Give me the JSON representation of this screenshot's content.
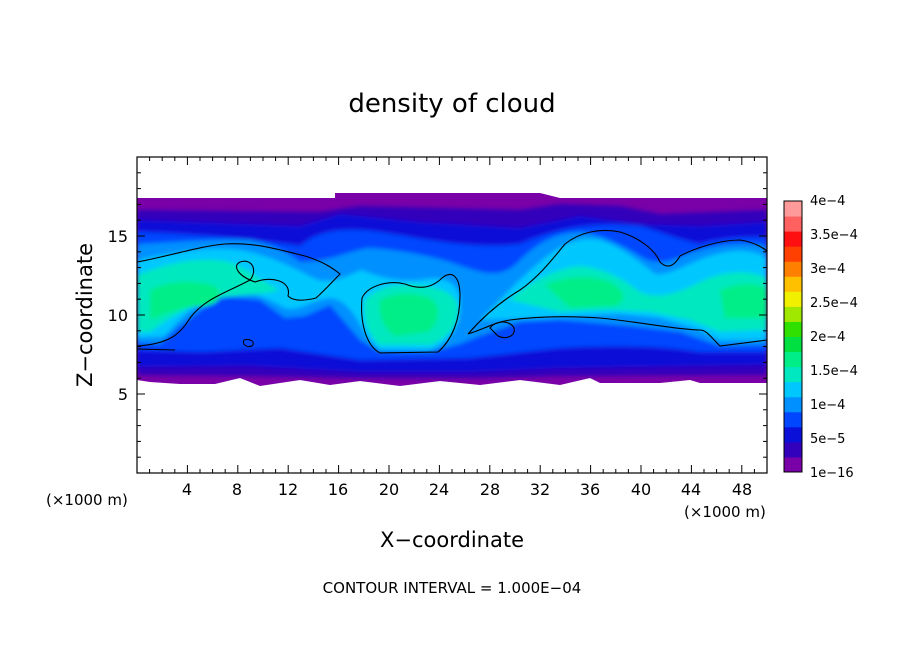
{
  "chart_data": {
    "type": "heatmap",
    "title": "density of cloud",
    "xlabel": "X−coordinate",
    "ylabel": "Z−coordinate",
    "x_unit_left": "(×1000 m)",
    "x_unit_right": "(×1000 m)",
    "footer": "CONTOUR INTERVAL = 1.000E−04",
    "xlim": [
      0,
      50
    ],
    "ylim": [
      0,
      20
    ],
    "x_ticks": [
      "4",
      "8",
      "12",
      "16",
      "20",
      "24",
      "28",
      "32",
      "36",
      "40",
      "44",
      "48"
    ],
    "y_ticks": [
      "5",
      "10",
      "15"
    ],
    "colorbar": {
      "levels": [
        "1e−16",
        "5e−5",
        "1e−4",
        "1.5e−4",
        "2e−4",
        "2.5e−4",
        "3e−4",
        "3.5e−4",
        "4e−4"
      ],
      "colors": [
        "#7a00a8",
        "#3300bb",
        "#0a10d8",
        "#0046ff",
        "#0090ff",
        "#00c8ff",
        "#00e8c0",
        "#00ee88",
        "#00e040",
        "#30e000",
        "#a0e800",
        "#f0f000",
        "#ffc000",
        "#ff8000",
        "#ff4000",
        "#ff1010",
        "#ff6060",
        "#ff9a9a"
      ]
    },
    "cloud_layer_z": [
      5.8,
      17.3
    ],
    "contour_levels": [
      0.0001
    ]
  }
}
